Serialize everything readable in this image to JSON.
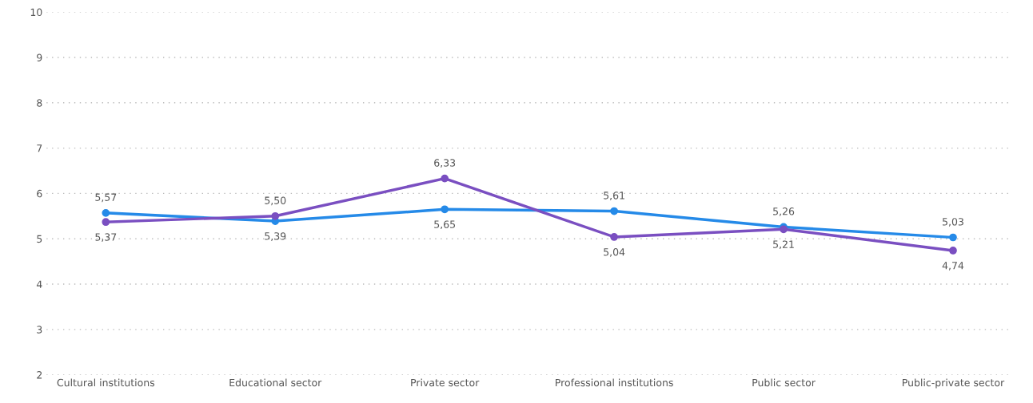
{
  "chart_data": {
    "type": "line",
    "categories": [
      "Cultural institutions",
      "Educational sector",
      "Private sector",
      "Professional institutions",
      "Public sector",
      "Public-private sector"
    ],
    "series": [
      {
        "color": "#258ae8",
        "values": [
          5.57,
          5.39,
          5.65,
          5.61,
          5.26,
          5.03
        ],
        "value_labels": [
          "5,57",
          "5,39",
          "5,65",
          "5,61",
          "5,26",
          "5,03"
        ]
      },
      {
        "color": "#7a4fc1",
        "values": [
          5.37,
          5.5,
          6.33,
          5.04,
          5.21,
          4.74
        ],
        "value_labels": [
          "5,37",
          "5,50",
          "6,33",
          "5,04",
          "5,21",
          "4,74"
        ]
      }
    ],
    "ylim": [
      2,
      10
    ],
    "yticks": [
      2,
      3,
      4,
      5,
      6,
      7,
      8,
      9,
      10
    ],
    "grid": "y",
    "marker": "circle",
    "line_style": "solid"
  }
}
